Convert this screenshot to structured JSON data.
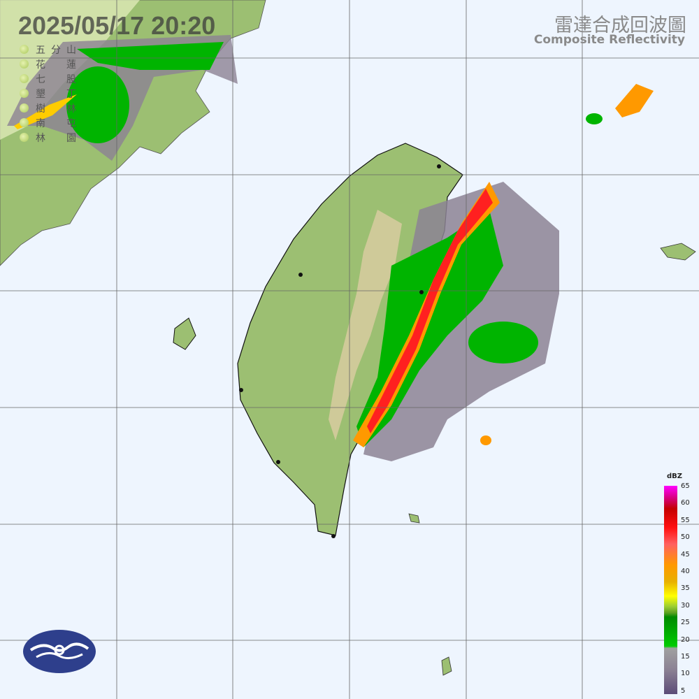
{
  "header": {
    "timestamp": "2025/05/17  20:20",
    "title_zh": "雷達合成回波圖",
    "title_en": "Composite Reflectivity"
  },
  "stations": [
    {
      "c1": "五",
      "c2": "分",
      "c3": "山"
    },
    {
      "c1": "花",
      "c2": "蓮"
    },
    {
      "c1": "七",
      "c2": "股"
    },
    {
      "c1": "墾",
      "c2": "丁"
    },
    {
      "c1": "樹",
      "c2": "林"
    },
    {
      "c1": "南",
      "c2": "屯"
    },
    {
      "c1": "林",
      "c2": "園"
    }
  ],
  "legend": {
    "unit": "dBZ",
    "ticks": [
      "65",
      "60",
      "55",
      "50",
      "45",
      "40",
      "35",
      "30",
      "25",
      "20",
      "15",
      "10",
      "5"
    ]
  },
  "colors": {
    "ocean": "#eef5fe",
    "land": "#9cbf72",
    "mountain": "#d8cba0",
    "echo_weak": "#8c8294",
    "echo_moderate": "#00b400",
    "echo_strong": "#ff2020",
    "logo": "#2e3f8c"
  }
}
